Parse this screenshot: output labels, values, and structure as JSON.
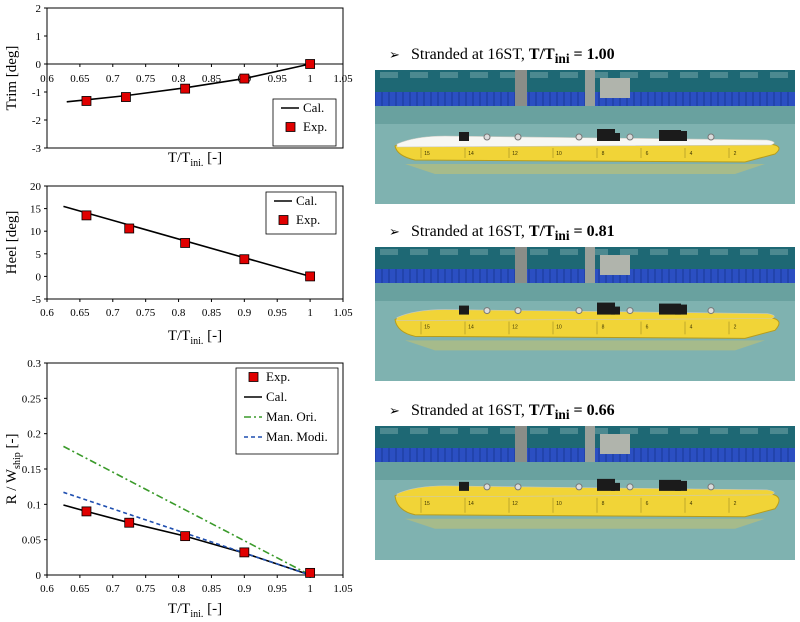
{
  "chart_data": [
    {
      "type": "line",
      "ylabel_main": "Trim",
      "ylabel_unit": " [deg]",
      "xlabel_main": "T/T",
      "xlabel_sub": "ini.",
      "xlabel_tail": " [-]",
      "xlim": [
        0.6,
        1.05
      ],
      "ylim": [
        -3,
        2
      ],
      "xticks": [
        0.6,
        0.65,
        0.7,
        0.75,
        0.8,
        0.85,
        0.9,
        0.95,
        1,
        1.05
      ],
      "yticks": [
        -3,
        -2,
        -1,
        0,
        1,
        2
      ],
      "xtick_labels": [
        "0.6",
        "0.65",
        "0.7",
        "0.75",
        "0.8",
        "0.85",
        "0.9",
        "0.95",
        "1",
        "1.05"
      ],
      "ytick_labels": [
        "-3",
        "-2",
        "-1",
        "0",
        "1",
        "2"
      ],
      "legend_position": "bottom-right",
      "series": [
        {
          "name": "Cal.",
          "kind": "line",
          "color": "#000000",
          "x": [
            0.63,
            0.66,
            0.72,
            0.81,
            0.9,
            1.0
          ],
          "y": [
            -1.35,
            -1.28,
            -1.13,
            -0.85,
            -0.52,
            0.0
          ]
        },
        {
          "name": "Exp.",
          "kind": "marker",
          "color": "#e00000",
          "x": [
            0.66,
            0.72,
            0.81,
            0.9,
            1.0
          ],
          "y": [
            -1.32,
            -1.18,
            -0.88,
            -0.52,
            0.0
          ]
        }
      ]
    },
    {
      "type": "line",
      "ylabel_main": "Heel",
      "ylabel_unit": " [deg]",
      "xlabel_main": "T/T",
      "xlabel_sub": "ini.",
      "xlabel_tail": " [-]",
      "xlim": [
        0.6,
        1.05
      ],
      "ylim": [
        -5,
        20
      ],
      "xticks": [
        0.6,
        0.65,
        0.7,
        0.75,
        0.8,
        0.85,
        0.9,
        0.95,
        1,
        1.05
      ],
      "yticks": [
        -5,
        0,
        5,
        10,
        15,
        20
      ],
      "xtick_labels": [
        "0.6",
        "0.65",
        "0.7",
        "0.75",
        "0.8",
        "0.85",
        "0.9",
        "0.95",
        "1",
        "1.05"
      ],
      "ytick_labels": [
        "-5",
        "0",
        "5",
        "10",
        "15",
        "20"
      ],
      "legend_position": "top-right",
      "series": [
        {
          "name": "Cal.",
          "kind": "line",
          "color": "#000000",
          "x": [
            0.625,
            1.0
          ],
          "y": [
            15.5,
            0.0
          ]
        },
        {
          "name": "Exp.",
          "kind": "marker",
          "color": "#e00000",
          "x": [
            0.66,
            0.725,
            0.81,
            0.9,
            1.0
          ],
          "y": [
            13.5,
            10.6,
            7.4,
            3.8,
            0.0
          ]
        }
      ]
    },
    {
      "type": "line",
      "ylabel_main": "R / W",
      "ylabel_sub": "ship",
      "ylabel_unit": " [-]",
      "xlabel_main": "T/T",
      "xlabel_sub": "ini.",
      "xlabel_tail": " [-]",
      "xlim": [
        0.6,
        1.05
      ],
      "ylim": [
        0,
        0.3
      ],
      "xticks": [
        0.6,
        0.65,
        0.7,
        0.75,
        0.8,
        0.85,
        0.9,
        0.95,
        1,
        1.05
      ],
      "yticks": [
        0,
        0.05,
        0.1,
        0.15,
        0.2,
        0.25,
        0.3
      ],
      "xtick_labels": [
        "0.6",
        "0.65",
        "0.7",
        "0.75",
        "0.8",
        "0.85",
        "0.9",
        "0.95",
        "1",
        "1.05"
      ],
      "ytick_labels": [
        "0",
        "0.05",
        "0.1",
        "0.15",
        "0.2",
        "0.25",
        "0.3"
      ],
      "legend_position": "top-right",
      "series": [
        {
          "name": "Exp.",
          "kind": "marker",
          "color": "#e00000",
          "x": [
            0.66,
            0.725,
            0.81,
            0.9,
            1.0
          ],
          "y": [
            0.09,
            0.074,
            0.055,
            0.032,
            0.003
          ]
        },
        {
          "name": "Cal.",
          "kind": "line",
          "color": "#000000",
          "x": [
            0.625,
            0.66,
            0.725,
            0.81,
            0.9,
            1.0
          ],
          "y": [
            0.099,
            0.09,
            0.074,
            0.055,
            0.031,
            0.0
          ]
        },
        {
          "name": "Man. Ori.",
          "kind": "line",
          "dash": "dashdot",
          "color": "#3a9a2a",
          "x": [
            0.625,
            1.0
          ],
          "y": [
            0.182,
            0.0
          ]
        },
        {
          "name": "Man. Modi.",
          "kind": "line",
          "dash": "dash",
          "color": "#1f4fb0",
          "x": [
            0.625,
            1.0
          ],
          "y": [
            0.117,
            0.0
          ]
        }
      ]
    }
  ],
  "photos": [
    {
      "caption_prefix": "Stranded at 16ST, ",
      "caption_var": "T/T",
      "caption_sub": "ini",
      "caption_value": " = 1.00",
      "draft": 1.0
    },
    {
      "caption_prefix": "Stranded at 16ST, ",
      "caption_var": "T/T",
      "caption_sub": "ini",
      "caption_value": " = 0.81",
      "draft": 0.81
    },
    {
      "caption_prefix": "Stranded at 16ST, ",
      "caption_var": "T/T",
      "caption_sub": "ini",
      "caption_value": " = 0.66",
      "draft": 0.66
    }
  ],
  "hull_station_labels": [
    "15",
    "14",
    "12",
    "10",
    "8",
    "6",
    "4",
    "2"
  ],
  "colors": {
    "hull": "#f1d437",
    "deck": "#f7f7f4",
    "pool_top": "#1e6874",
    "pool_water": "#7fb2b0",
    "blue_barrier": "#2b4fc2"
  }
}
